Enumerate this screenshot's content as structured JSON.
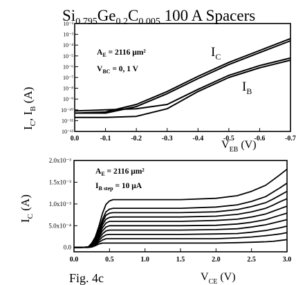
{
  "figure": {
    "title_parts": {
      "a": "Si",
      "a_sub": "0.795",
      "b": "Ge",
      "b_sub": "0.2",
      "c": "C",
      "c_sub": "0.005",
      "rest": " 100 A Spacers"
    },
    "caption": "Fig. 4c"
  },
  "chart_data": [
    {
      "type": "line",
      "title": "Si0.795Ge0.2C0.005 100 A Spacers",
      "xlabel": "VEB (V)",
      "ylabel": "IC, IB (A)",
      "xlabel_parts": {
        "main": "V",
        "sub": "EB",
        "unit": " (V)"
      },
      "ylabel_parts": {
        "a": "I",
        "a_sub": "C",
        "sep": ", ",
        "b": "I",
        "b_sub": "B",
        "unit": " (A)"
      },
      "xlim": [
        0.0,
        -0.7
      ],
      "ylim": [
        1e-12,
        0.01
      ],
      "yscale": "log",
      "x_ticks": [
        0.0,
        -0.1,
        -0.2,
        -0.3,
        -0.4,
        -0.5,
        -0.6,
        -0.7
      ],
      "x_tick_labels": [
        "0.0",
        "-0.1",
        "-0.2",
        "-0.3",
        "-0.4",
        "-0.5",
        "-0.6",
        "-0.7"
      ],
      "y_ticks": [
        -12,
        -11,
        -10,
        -9,
        -8,
        -7,
        -6,
        -5,
        -4,
        -3,
        -2
      ],
      "y_tick_labels": [
        "10⁻¹²",
        "10⁻¹¹",
        "10⁻¹⁰",
        "10⁻⁹",
        "10⁻⁸",
        "10⁻⁷",
        "10⁻⁶",
        "10⁻⁵",
        "10⁻⁴",
        "10⁻³",
        "10⁻²"
      ],
      "annotations": {
        "ae": {
          "main": "A",
          "sub": "E",
          "rest": " = 2116 μm²"
        },
        "vbc": {
          "main": "V",
          "sub": "BC",
          "rest": " = 0, 1 V"
        }
      },
      "series": [
        {
          "name": "IC",
          "label_main": "I",
          "label_sub": "C",
          "x": [
            0.0,
            -0.1,
            -0.2,
            -0.3,
            -0.4,
            -0.5,
            -0.6,
            -0.7
          ],
          "y": [
            -10.3,
            -10.3,
            -9.7,
            -8.5,
            -7.1,
            -5.8,
            -4.7,
            -3.6
          ]
        },
        {
          "name": "IC",
          "x": [
            0.0,
            -0.1,
            -0.2,
            -0.3,
            -0.4,
            -0.5,
            -0.6,
            -0.7
          ],
          "y": [
            -10.3,
            -10.2,
            -9.5,
            -8.3,
            -6.9,
            -5.6,
            -4.5,
            -3.4
          ]
        },
        {
          "name": "IB",
          "label_main": "I",
          "label_sub": "B",
          "x": [
            0.0,
            -0.1,
            -0.2,
            -0.3,
            -0.4,
            -0.5,
            -0.6,
            -0.7
          ],
          "y": [
            -10.7,
            -10.7,
            -10.6,
            -9.9,
            -8.3,
            -7.0,
            -6.1,
            -5.4
          ]
        },
        {
          "name": "IB",
          "x": [
            0.0,
            -0.1,
            -0.2,
            -0.3,
            -0.4,
            -0.5,
            -0.6,
            -0.7
          ],
          "y": [
            -10.1,
            -10.0,
            -9.9,
            -9.5,
            -8.1,
            -6.8,
            -5.9,
            -5.2
          ]
        }
      ]
    },
    {
      "type": "line",
      "xlabel": "VCE (V)",
      "ylabel": "IC (A)",
      "xlabel_parts": {
        "main": "V",
        "sub": "CE",
        "unit": " (V)"
      },
      "ylabel_parts": {
        "main": "I",
        "sub": "C",
        "unit": " (A)"
      },
      "xlim": [
        0.0,
        3.0
      ],
      "ylim": [
        -0.0001,
        0.002
      ],
      "x_ticks": [
        0.0,
        0.5,
        1.0,
        1.5,
        2.0,
        2.5,
        3.0
      ],
      "x_tick_labels": [
        "0.0",
        "0.5",
        "1.0",
        "1.5",
        "2.0",
        "2.5",
        "3.0"
      ],
      "y_ticks": [
        0.0,
        0.0005,
        0.001,
        0.0015,
        0.002
      ],
      "y_tick_labels": [
        "0.0",
        "5.0x10⁻⁴",
        "1.0x10⁻³",
        "1.5x10⁻³",
        "2.0x10⁻³"
      ],
      "annotations": {
        "ae": {
          "main": "A",
          "sub": "E",
          "rest": " = 2116 μm²"
        },
        "ib": {
          "main": "I",
          "sub": "B step",
          "rest": " = 10 μA"
        }
      },
      "saturation_currents": [
        0.0001,
        0.0002,
        0.0003,
        0.0004,
        0.0005,
        0.0006,
        0.0007,
        0.0008,
        0.0009,
        0.0011
      ],
      "curve_x": [
        0.0,
        0.1,
        0.2,
        0.25,
        0.3,
        0.35,
        0.4,
        0.45,
        0.5,
        0.55,
        0.6,
        0.65,
        0.7,
        0.8,
        1.0,
        1.5,
        2.0,
        2.3,
        2.5,
        2.7,
        2.8,
        2.9,
        3.0
      ],
      "curves": [
        [
          0.0,
          0.0,
          0.0,
          1e-05,
          4e-05,
          8e-05,
          0.0001,
          0.0001,
          0.0001,
          0.0001,
          0.0001,
          0.0001,
          0.0001,
          0.0001,
          0.0001,
          0.0001,
          0.0001,
          0.00011,
          0.00012,
          0.00013,
          0.00014,
          0.00016,
          0.00018
        ],
        [
          0.0,
          0.0,
          0.0,
          2e-05,
          6e-05,
          0.00012,
          0.00017,
          0.0002,
          0.0002,
          0.0002,
          0.0002,
          0.0002,
          0.0002,
          0.0002,
          0.0002,
          0.0002,
          0.0002,
          0.00022,
          0.00024,
          0.00027,
          0.00029,
          0.00031,
          0.00034
        ],
        [
          0.0,
          0.0,
          1e-05,
          3e-05,
          8e-05,
          0.00016,
          0.00024,
          0.00029,
          0.0003,
          0.0003,
          0.0003,
          0.0003,
          0.0003,
          0.0003,
          0.0003,
          0.0003,
          0.00031,
          0.00032,
          0.00035,
          0.00039,
          0.00042,
          0.00045,
          0.00049
        ],
        [
          0.0,
          0.0,
          1e-05,
          4e-05,
          0.0001,
          0.0002,
          0.00031,
          0.00038,
          0.0004,
          0.0004,
          0.0004,
          0.0004,
          0.0004,
          0.0004,
          0.0004,
          0.0004,
          0.00041,
          0.00043,
          0.00047,
          0.00052,
          0.00056,
          0.0006,
          0.00064
        ],
        [
          0.0,
          0.0,
          1e-05,
          5e-05,
          0.00012,
          0.00024,
          0.00038,
          0.00047,
          0.0005,
          0.0005,
          0.0005,
          0.0005,
          0.0005,
          0.0005,
          0.0005,
          0.0005,
          0.00051,
          0.00054,
          0.00058,
          0.00064,
          0.00069,
          0.00074,
          0.00079
        ],
        [
          0.0,
          0.0,
          1e-05,
          6e-05,
          0.00014,
          0.00028,
          0.00045,
          0.00056,
          0.0006,
          0.0006,
          0.0006,
          0.0006,
          0.0006,
          0.0006,
          0.0006,
          0.0006,
          0.00062,
          0.00065,
          0.0007,
          0.00077,
          0.00083,
          0.00089,
          0.00095
        ],
        [
          0.0,
          0.0,
          1e-05,
          7e-05,
          0.00016,
          0.00032,
          0.00052,
          0.00065,
          0.00069,
          0.0007,
          0.0007,
          0.0007,
          0.0007,
          0.0007,
          0.0007,
          0.0007,
          0.00072,
          0.00076,
          0.00082,
          0.0009,
          0.00097,
          0.00105,
          0.00112
        ],
        [
          0.0,
          0.0,
          1e-05,
          8e-05,
          0.00018,
          0.00036,
          0.00058,
          0.00074,
          0.00079,
          0.0008,
          0.0008,
          0.0008,
          0.0008,
          0.0008,
          0.0008,
          0.0008,
          0.00082,
          0.00087,
          0.00094,
          0.00103,
          0.00111,
          0.0012,
          0.00129
        ],
        [
          0.0,
          0.0,
          1e-05,
          9e-05,
          0.0002,
          0.0004,
          0.00064,
          0.00082,
          0.00088,
          0.0009,
          0.0009,
          0.0009,
          0.0009,
          0.0009,
          0.0009,
          0.0009,
          0.00093,
          0.00098,
          0.00106,
          0.00117,
          0.00127,
          0.00137,
          0.00148
        ],
        [
          0.0,
          0.0,
          1e-05,
          0.0001,
          0.00024,
          0.00048,
          0.00078,
          0.00099,
          0.00107,
          0.0011,
          0.0011,
          0.0011,
          0.0011,
          0.0011,
          0.0011,
          0.0011,
          0.00113,
          0.00119,
          0.00129,
          0.00143,
          0.00155,
          0.00167,
          0.0018
        ]
      ]
    }
  ]
}
